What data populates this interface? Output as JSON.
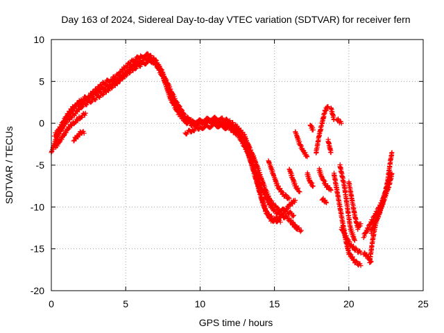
{
  "chart_data": {
    "type": "scatter",
    "title": "Day 163 of 2024, Sidereal Day-to-day VTEC variation (SDTVAR) for receiver fern",
    "xlabel": "GPS time / hours",
    "ylabel": "SDTVAR / TECUs",
    "xlim": [
      0,
      25
    ],
    "ylim": [
      -20,
      10
    ],
    "xticks": [
      "0",
      "5",
      "10",
      "15",
      "20",
      "25"
    ],
    "yticks": [
      "10",
      "5",
      "0",
      "-5",
      "-10",
      "-15",
      "-20"
    ],
    "grid": true,
    "marker": "+",
    "color": "#ff0000",
    "series": [
      {
        "name": "arc-main-1",
        "points": [
          [
            0,
            -3.5
          ],
          [
            0.3,
            -2
          ],
          [
            0.6,
            -1
          ],
          [
            1,
            0.5
          ],
          [
            1.5,
            1.8
          ],
          [
            2,
            2.8
          ],
          [
            2.5,
            3.2
          ],
          [
            3,
            4
          ],
          [
            3.5,
            4.8
          ],
          [
            4,
            5.2
          ],
          [
            4.5,
            5.8
          ],
          [
            5,
            6.8
          ],
          [
            5.5,
            7.5
          ],
          [
            6,
            8
          ],
          [
            6.5,
            8.2
          ],
          [
            7,
            7.5
          ],
          [
            7.5,
            6
          ],
          [
            8,
            3.5
          ],
          [
            8.5,
            1.8
          ],
          [
            9,
            0.5
          ],
          [
            9.5,
            0.2
          ],
          [
            10,
            0.3
          ],
          [
            10.5,
            0.5
          ],
          [
            11,
            0.6
          ],
          [
            11.5,
            0.5
          ],
          [
            12,
            0.2
          ],
          [
            12.5,
            -0.5
          ],
          [
            13,
            -1.5
          ],
          [
            13.3,
            -3
          ],
          [
            13.6,
            -5
          ],
          [
            14,
            -7
          ],
          [
            14.3,
            -8.5
          ],
          [
            14.6,
            -9.5
          ],
          [
            15,
            -10.5
          ],
          [
            15.5,
            -11
          ],
          [
            16,
            -11.5
          ],
          [
            16.5,
            -12.5
          ]
        ]
      },
      {
        "name": "arc-main-2",
        "points": [
          [
            0.2,
            -1.5
          ],
          [
            0.6,
            -0.5
          ],
          [
            1,
            0.8
          ],
          [
            1.5,
            2
          ],
          [
            2,
            2.5
          ],
          [
            2.5,
            3
          ],
          [
            3,
            3.6
          ],
          [
            3.5,
            4.2
          ],
          [
            4,
            4.6
          ],
          [
            4.5,
            5.2
          ],
          [
            5,
            6
          ],
          [
            5.5,
            7
          ],
          [
            6,
            7.4
          ],
          [
            6.5,
            7.8
          ],
          [
            7,
            7.2
          ],
          [
            7.5,
            5.5
          ],
          [
            8,
            3
          ],
          [
            8.5,
            1.3
          ],
          [
            9,
            0.2
          ],
          [
            9.5,
            -0.2
          ],
          [
            10,
            0.1
          ],
          [
            10.5,
            0.3
          ],
          [
            11,
            0.3
          ],
          [
            11.5,
            0.1
          ],
          [
            12,
            -0.3
          ],
          [
            12.5,
            -1
          ],
          [
            13,
            -2.5
          ],
          [
            13.4,
            -4.5
          ],
          [
            13.8,
            -7
          ],
          [
            14.2,
            -9.5
          ],
          [
            14.6,
            -11
          ],
          [
            15,
            -11.5
          ],
          [
            15.4,
            -11.8
          ]
        ]
      },
      {
        "name": "arc-main-3",
        "points": [
          [
            0.5,
            -1
          ],
          [
            1,
            0.2
          ],
          [
            1.6,
            1.2
          ],
          [
            2,
            2
          ],
          [
            2.6,
            2.6
          ],
          [
            3.2,
            3.2
          ],
          [
            3.8,
            4
          ],
          [
            4.4,
            4.8
          ],
          [
            5,
            5.8
          ],
          [
            5.6,
            6.6
          ],
          [
            6.2,
            7.2
          ],
          [
            6.8,
            7.4
          ],
          [
            7.2,
            6.8
          ],
          [
            7.8,
            4.8
          ],
          [
            8.4,
            2.5
          ],
          [
            9,
            0.8
          ],
          [
            9.6,
            0
          ],
          [
            10.2,
            0
          ],
          [
            10.8,
            0.2
          ],
          [
            11.4,
            0
          ],
          [
            12,
            -0.5
          ],
          [
            12.6,
            -1.2
          ],
          [
            13.2,
            -2.5
          ],
          [
            13.6,
            -4
          ],
          [
            14,
            -6
          ],
          [
            14.4,
            -8
          ],
          [
            14.8,
            -9.5
          ],
          [
            15.2,
            -10.2
          ],
          [
            15.8,
            -10.5
          ],
          [
            16.3,
            -11
          ]
        ]
      },
      {
        "name": "arc-main-4",
        "points": [
          [
            9,
            -1.2
          ],
          [
            9.5,
            -0.8
          ],
          [
            10,
            -0.5
          ],
          [
            10.5,
            -0.4
          ],
          [
            11,
            -0.2
          ],
          [
            11.5,
            -0.4
          ],
          [
            12,
            -0.6
          ],
          [
            12.6,
            -1.5
          ],
          [
            13.2,
            -3.5
          ],
          [
            13.6,
            -5.5
          ],
          [
            14,
            -8
          ],
          [
            14.4,
            -10.5
          ],
          [
            14.8,
            -11.6
          ],
          [
            15.2,
            -11.5
          ],
          [
            15.6,
            -10.8
          ],
          [
            16,
            -9.8
          ],
          [
            16.4,
            -9.2
          ]
        ]
      },
      {
        "name": "arc-left-low",
        "points": [
          [
            0.3,
            -2.8
          ],
          [
            0.6,
            -2
          ],
          [
            0.9,
            -1.2
          ],
          [
            1.2,
            -0.4
          ],
          [
            1.6,
            0.2
          ],
          [
            2,
            0.8
          ],
          [
            2.3,
            1.2
          ]
        ]
      },
      {
        "name": "arc-left-short",
        "points": [
          [
            1.5,
            -2
          ],
          [
            1.8,
            -1.5
          ],
          [
            2,
            -1
          ],
          [
            2.2,
            -1.2
          ]
        ]
      },
      {
        "name": "arc-mid-rise",
        "points": [
          [
            14.6,
            -4.5
          ],
          [
            14.9,
            -6
          ],
          [
            15.2,
            -7.5
          ],
          [
            15.6,
            -8.5
          ],
          [
            16,
            -9
          ]
        ]
      },
      {
        "name": "arc-upper-1",
        "points": [
          [
            16,
            -5.5
          ],
          [
            16.2,
            -6.5
          ],
          [
            16.4,
            -7.5
          ],
          [
            16.7,
            -8.2
          ]
        ]
      },
      {
        "name": "arc-upper-2",
        "points": [
          [
            16.4,
            -1
          ],
          [
            16.7,
            -2.5
          ],
          [
            17,
            -3.5
          ],
          [
            17.2,
            -4
          ]
        ]
      },
      {
        "name": "arc-upper-3",
        "points": [
          [
            17.4,
            -0.2
          ],
          [
            17.6,
            -0.8
          ]
        ]
      },
      {
        "name": "arc-upper-4",
        "points": [
          [
            17.8,
            -3.5
          ],
          [
            18,
            -1.5
          ],
          [
            18.2,
            0
          ],
          [
            18.4,
            1.5
          ],
          [
            18.6,
            2
          ]
        ]
      },
      {
        "name": "arc-upper-5",
        "points": [
          [
            18.8,
            1.8
          ],
          [
            19,
            0.5
          ]
        ]
      },
      {
        "name": "arc-upper-6",
        "points": [
          [
            19.2,
            0.5
          ],
          [
            19.5,
            0
          ]
        ]
      },
      {
        "name": "arc-mid-1",
        "points": [
          [
            16.2,
            -12
          ],
          [
            16.5,
            -12.5
          ],
          [
            16.8,
            -12.8
          ]
        ]
      },
      {
        "name": "arc-mid-2",
        "points": [
          [
            17.2,
            -6
          ],
          [
            17.4,
            -7
          ],
          [
            17.6,
            -7.5
          ]
        ]
      },
      {
        "name": "arc-mid-3",
        "points": [
          [
            18,
            -5.5
          ],
          [
            18.2,
            -6.5
          ],
          [
            18.5,
            -7.5
          ],
          [
            18.8,
            -8
          ]
        ]
      },
      {
        "name": "arc-mid-4",
        "points": [
          [
            18.2,
            -9
          ],
          [
            18.5,
            -9.5
          ]
        ]
      },
      {
        "name": "arc-mid-5",
        "points": [
          [
            18.6,
            -2
          ],
          [
            18.8,
            -3.5
          ]
        ]
      },
      {
        "name": "arc-right-1",
        "points": [
          [
            19,
            -6
          ],
          [
            19.2,
            -8
          ],
          [
            19.4,
            -10
          ],
          [
            19.6,
            -12
          ],
          [
            19.8,
            -14
          ],
          [
            20,
            -15.5
          ],
          [
            20.4,
            -16.5
          ],
          [
            20.8,
            -17
          ]
        ]
      },
      {
        "name": "arc-right-2",
        "points": [
          [
            19.4,
            -5
          ],
          [
            19.7,
            -7.5
          ],
          [
            19.9,
            -10
          ],
          [
            20.1,
            -12.5
          ],
          [
            20.4,
            -14
          ]
        ]
      },
      {
        "name": "arc-right-3",
        "points": [
          [
            19.5,
            -12.5
          ],
          [
            19.8,
            -13.5
          ],
          [
            20.1,
            -14.5
          ],
          [
            20.4,
            -15
          ],
          [
            20.8,
            -15.5
          ]
        ]
      },
      {
        "name": "arc-right-4",
        "points": [
          [
            20,
            -7
          ],
          [
            20.2,
            -9
          ],
          [
            20.4,
            -11
          ],
          [
            20.6,
            -12.5
          ],
          [
            20.8,
            -12
          ]
        ]
      },
      {
        "name": "arc-right-5",
        "points": [
          [
            21,
            -15.5
          ],
          [
            21.3,
            -16
          ],
          [
            21.5,
            -16.5
          ]
        ]
      },
      {
        "name": "arc-right-6",
        "points": [
          [
            21,
            -13.5
          ],
          [
            21.3,
            -12.5
          ],
          [
            21.6,
            -11.5
          ],
          [
            21.9,
            -10.5
          ],
          [
            22.2,
            -9.5
          ],
          [
            22.5,
            -8
          ],
          [
            22.8,
            -6
          ]
        ]
      },
      {
        "name": "arc-right-7",
        "points": [
          [
            21.4,
            -16.5
          ],
          [
            21.6,
            -14
          ],
          [
            21.8,
            -12
          ],
          [
            22,
            -11
          ],
          [
            22.3,
            -9.5
          ],
          [
            22.6,
            -7
          ],
          [
            22.8,
            -4.5
          ],
          [
            22.9,
            -3.5
          ]
        ]
      },
      {
        "name": "arc-right-8",
        "points": [
          [
            21.5,
            -13
          ],
          [
            21.8,
            -11.5
          ],
          [
            22.1,
            -10.5
          ],
          [
            22.4,
            -9
          ],
          [
            22.7,
            -7.5
          ],
          [
            22.9,
            -6
          ]
        ]
      }
    ]
  }
}
